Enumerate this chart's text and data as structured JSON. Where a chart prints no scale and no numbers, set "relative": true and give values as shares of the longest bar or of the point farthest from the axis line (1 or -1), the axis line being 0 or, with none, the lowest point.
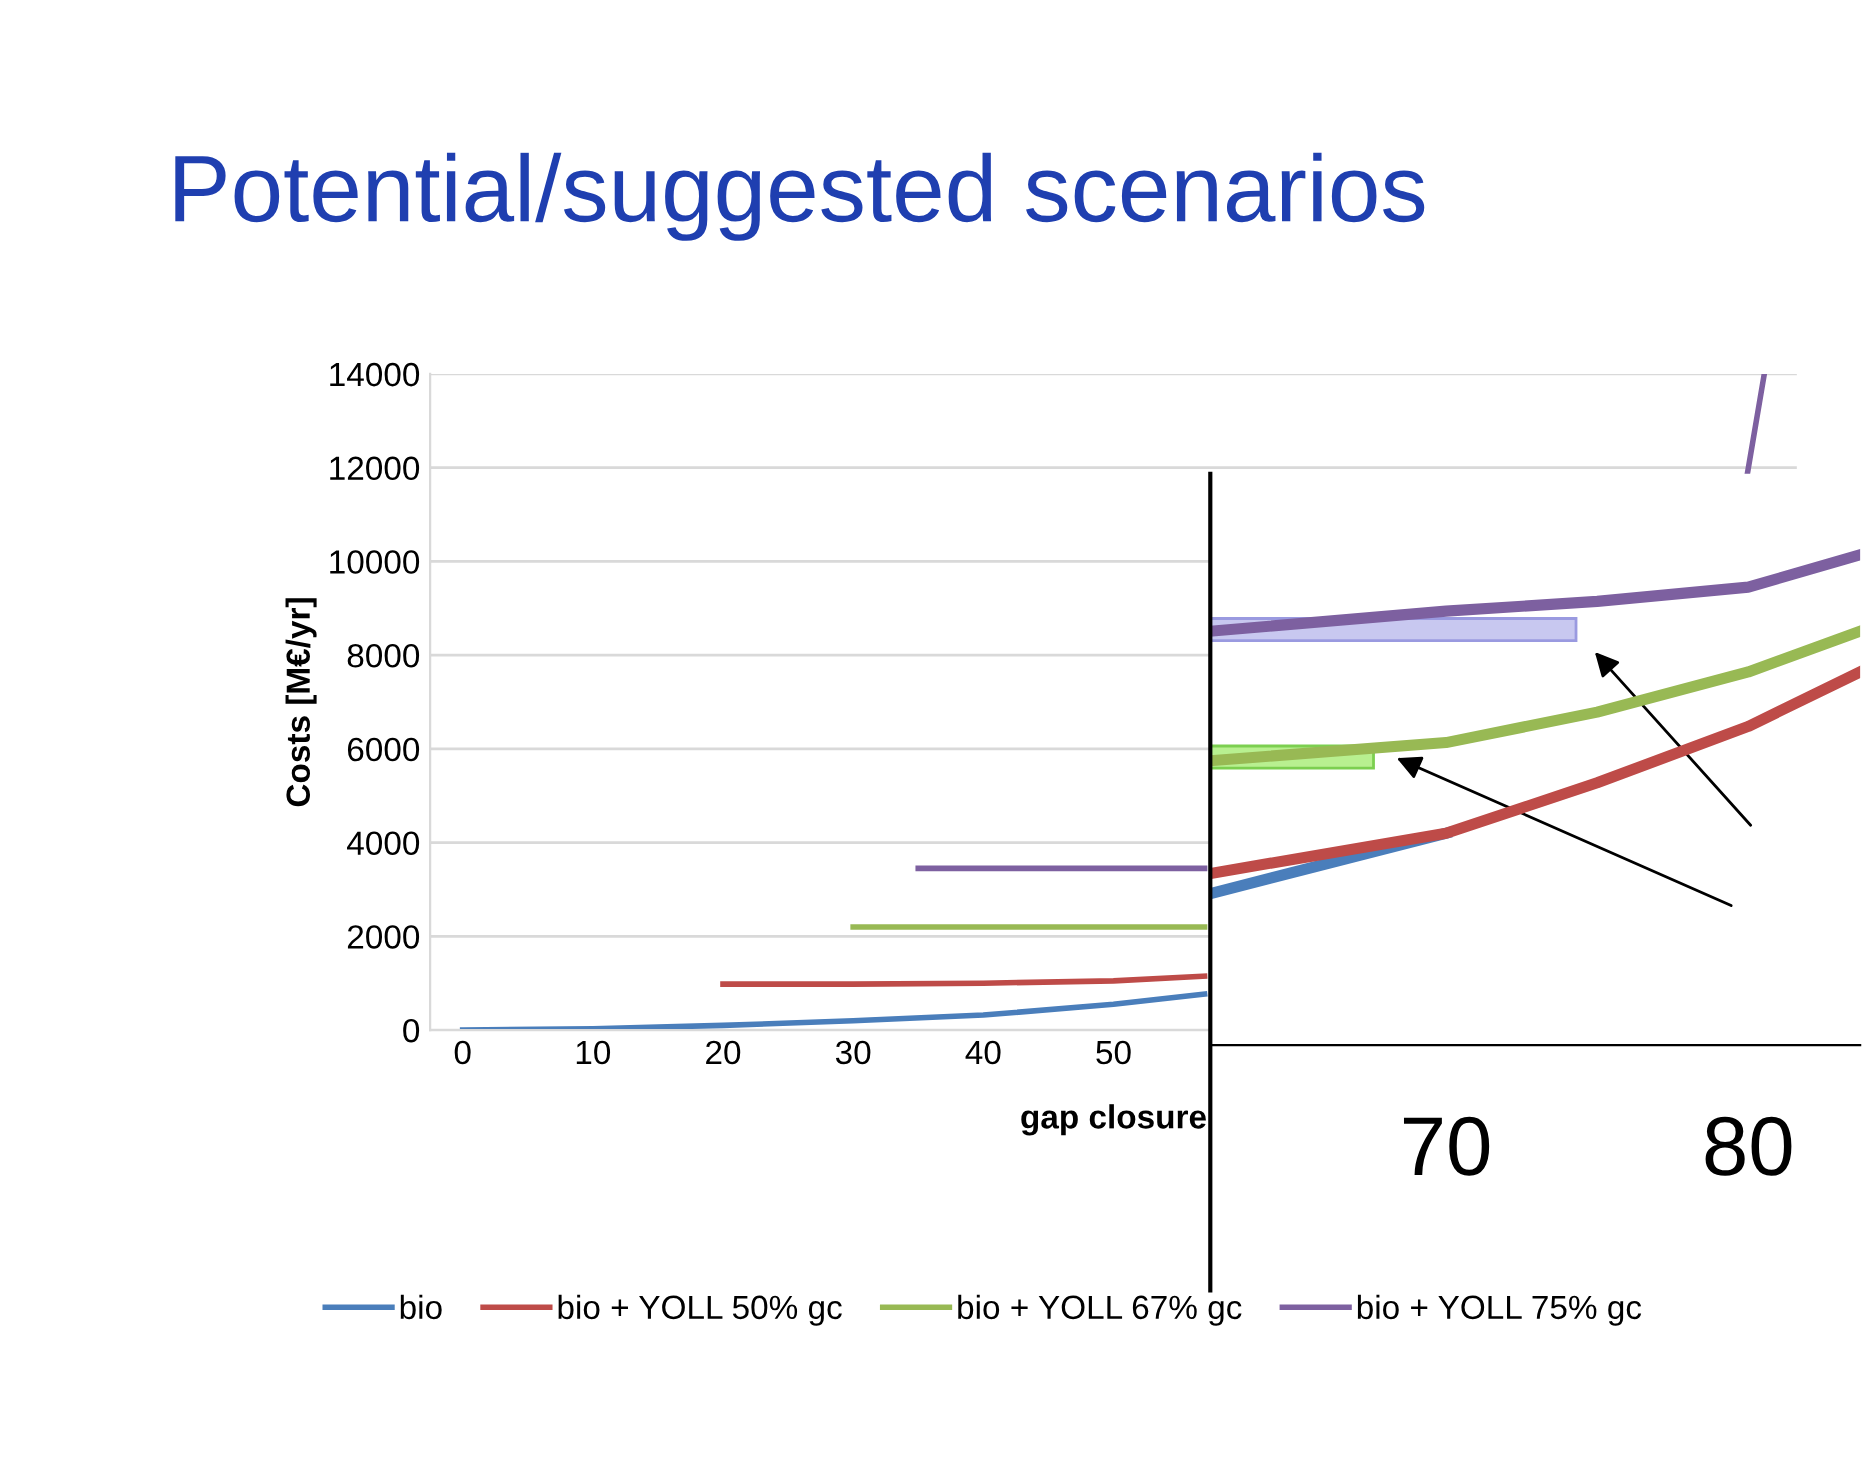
{
  "chart_data": [
    {
      "type": "line",
      "title": "Potential/suggested scenarios",
      "xlabel": "gap closure",
      "ylabel": "Costs [M€/yr]",
      "xlim": [
        -2.5,
        102.5
      ],
      "xticks": [
        0,
        10,
        20,
        30,
        40,
        50
      ],
      "ylim": [
        0,
        14000
      ],
      "yticks": [
        0,
        2000,
        4000,
        6000,
        8000,
        10000,
        12000,
        14000
      ],
      "grid": "y",
      "legend": "bottom",
      "marker": "none",
      "line_style": "solid",
      "series": [
        {
          "name": "bio",
          "color": "#4a7ebb",
          "x": [
            0,
            10,
            20,
            30,
            40,
            50,
            57
          ],
          "values": [
            0,
            30,
            100,
            200,
            320,
            550,
            770
          ]
        },
        {
          "name": "bio + YOLL 50% gc",
          "color": "#be4b48",
          "x": [
            20,
            30,
            40,
            50,
            57
          ],
          "values": [
            980,
            980,
            1000,
            1050,
            1150
          ]
        },
        {
          "name": "bio + YOLL 67% gc",
          "color": "#98b954",
          "x": [
            30,
            40,
            50,
            57
          ],
          "values": [
            2200,
            2200,
            2200,
            2200
          ]
        },
        {
          "name": "bio + YOLL 75% gc",
          "color": "#7d60a0",
          "x": [
            35,
            40,
            50,
            57,
            60,
            98.7,
            100
          ],
          "values": [
            3450,
            3450,
            3450,
            3450,
            null,
            11870,
            14000
          ]
        }
      ]
    },
    {
      "type": "line",
      "relative": true,
      "xlim": [
        62.2,
        83.7
      ],
      "xticks": [
        70,
        80
      ],
      "tick_labels": "x",
      "marker": "none",
      "line_style": "solid",
      "series": [
        {
          "color": "#4a7ebb",
          "x": [
            62.2,
            70
          ],
          "values": [
            0.309,
            0.432
          ]
        },
        {
          "color": "#be4b48",
          "x": [
            62.2,
            70,
            75,
            80,
            83.7
          ],
          "values": [
            0.35,
            0.432,
            0.535,
            0.65,
            0.761
          ]
        },
        {
          "color": "#98b954",
          "x": [
            62.2,
            70,
            75,
            80,
            83.7
          ],
          "values": [
            0.58,
            0.617,
            0.679,
            0.761,
            0.844
          ]
        },
        {
          "color": "#7d60a0",
          "x": [
            62.2,
            70,
            75,
            80,
            83.7
          ],
          "values": [
            0.844,
            0.885,
            0.905,
            0.934,
            1.0
          ]
        }
      ]
    }
  ]
}
